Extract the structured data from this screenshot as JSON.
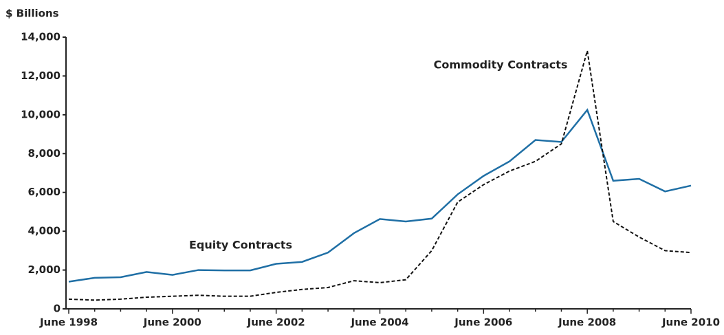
{
  "chart_data": {
    "type": "line",
    "y_axis_label": "$ Billions",
    "annotations": [
      "Commodity Contracts",
      "Equity Contracts"
    ],
    "categories": [
      "June 1998",
      null,
      null,
      null,
      "June 2000",
      null,
      null,
      null,
      "June 2002",
      null,
      null,
      null,
      "June 2004",
      null,
      null,
      null,
      "June 2006",
      null,
      null,
      null,
      "June 2008",
      null,
      null,
      null,
      "June 2010"
    ],
    "series": [
      {
        "name": "Equity Contracts",
        "color": "#1f6fa5",
        "dash": false,
        "values": [
          1400,
          1600,
          1630,
          1900,
          1750,
          2000,
          1980,
          1980,
          2320,
          2420,
          2900,
          3900,
          4630,
          4500,
          4650,
          5900,
          6850,
          7600,
          8700,
          8600,
          10250,
          6600,
          6700,
          6050,
          6350
        ]
      },
      {
        "name": "Commodity Contracts",
        "color": "#111111",
        "dash": true,
        "values": [
          500,
          450,
          500,
          600,
          650,
          700,
          650,
          650,
          850,
          1000,
          1100,
          1450,
          1350,
          1500,
          3000,
          5500,
          6400,
          7100,
          7600,
          8500,
          13300,
          4500,
          3700,
          3000,
          2900
        ]
      }
    ],
    "ylim": [
      0,
      14000
    ],
    "yticks": [
      0,
      {
        "value": 2000,
        "label": "2,000"
      },
      {
        "value": 4000,
        "label": "4,000"
      },
      {
        "value": 6000,
        "label": "6,000"
      },
      {
        "value": 8000,
        "label": "8,000"
      },
      {
        "value": 10000,
        "label": "10,000"
      },
      {
        "value": 12000,
        "label": "12,000"
      },
      {
        "value": 14000,
        "label": "14,000"
      }
    ],
    "grid": false
  }
}
